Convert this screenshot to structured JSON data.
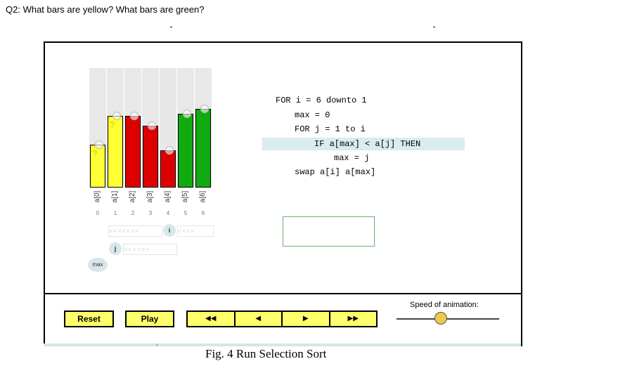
{
  "question": "Q2: What bars are yellow? What bars are green?",
  "array": {
    "labels": [
      "a[0]",
      "a[1]",
      "a[2]",
      "a[3]",
      "a[4]",
      "a[5]",
      "a[6]"
    ],
    "indices": [
      "0",
      "1",
      "2",
      "3",
      "4",
      "5",
      "6"
    ],
    "bar_heights_fraction": [
      0.36,
      0.6,
      0.6,
      0.52,
      0.31,
      0.62,
      0.66
    ],
    "bar_colors": [
      "#ffff33",
      "#ffff33",
      "#dd0000",
      "#dd0000",
      "#dd0000",
      "#11aa11",
      "#11aa11"
    ],
    "unknown_mark": "?"
  },
  "pointers": {
    "i_label": "i",
    "i_track": "<<<<<<<",
    "i_track_right": "<<<<",
    "j_label": "j",
    "j_track": ">>>>>>",
    "max_label": "max"
  },
  "code": {
    "lines": [
      "FOR i = 6 downto 1",
      "max = 0",
      "FOR j = 1 to i",
      "IF a[max] < a[j] THEN",
      "max = j",
      "swap a[i] a[max]"
    ]
  },
  "controls": {
    "reset_label": "Reset",
    "play_label": "Play",
    "nav": [
      "◀◀",
      "◀",
      "▶",
      "▶▶"
    ],
    "speed_label": "Speed of animation:",
    "speed_value": 0.43
  },
  "caption": "Fig. 4 Run Selection Sort",
  "colors": {
    "button": "#ffff6b",
    "highlight": "#d9ecef",
    "yellow": "#ffff33",
    "red": "#dd0000",
    "green": "#11aa11"
  }
}
